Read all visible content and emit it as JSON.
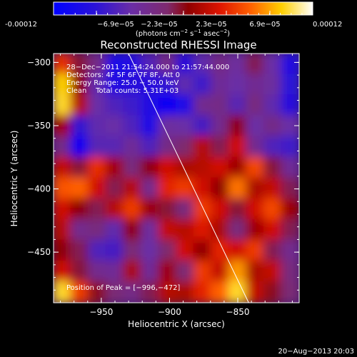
{
  "chart_data": {
    "type": "heatmap",
    "title": "Reconstructed RHESSI Image",
    "xlabel": "Heliocentric X (arcsec)",
    "ylabel": "Heliocentric Y (arcsec)",
    "xlim": [
      -985,
      -805
    ],
    "ylim": [
      -490,
      -293
    ],
    "x_ticks": [
      -950,
      -900,
      -850
    ],
    "y_ticks": [
      -300,
      -350,
      -400,
      -450
    ],
    "x_tick_labels": [
      "−950",
      "−900",
      "−850"
    ],
    "y_tick_labels": [
      "−300",
      "−350",
      "−400",
      "−450"
    ],
    "colorbar": {
      "min": -0.00012,
      "max": 0.00012,
      "tick_labels": [
        "-0.00012",
        "−6.9e−05",
        "−2.3e−05",
        "2.3e−05",
        "6.9e−05",
        "0.00012"
      ],
      "unit_label_parts": [
        "(photons cm",
        "−2",
        " s",
        "−1",
        " asec",
        "−2",
        ")"
      ]
    },
    "annotations": [
      "28−Dec−2011 21:54:24.000 to 21:57:44.000",
      "Detectors: 4F 5F 6F 7F 8F, Att 0",
      "Energy Range: 25.0 − 50.0 keV",
      "Clean    Total counts: 5.31E+03"
    ],
    "peak_label": "Position of Peak = [−996,−472]",
    "limb_line": [
      [
        -930,
        -293
      ],
      [
        -842,
        -490
      ]
    ],
    "image_grid": {
      "rows": 12,
      "cols": 14,
      "values": [
        [
          0.68,
          0.48,
          0.38,
          0.1,
          0.12,
          0.25,
          0.38,
          0.15,
          0.28,
          0.38,
          0.32,
          0.46,
          0.3,
          0.12
        ],
        [
          0.88,
          0.52,
          0.28,
          0.12,
          0.15,
          0.14,
          0.18,
          0.28,
          0.2,
          0.34,
          0.3,
          0.35,
          0.32,
          0.16
        ],
        [
          0.9,
          0.58,
          0.3,
          0.24,
          0.2,
          0.12,
          0.04,
          0.1,
          0.36,
          0.38,
          0.26,
          0.4,
          0.28,
          0.14
        ],
        [
          0.55,
          0.18,
          0.28,
          0.3,
          0.24,
          0.1,
          0.32,
          0.3,
          0.22,
          0.36,
          0.52,
          0.3,
          0.38,
          0.3
        ],
        [
          0.38,
          0.05,
          0.26,
          0.26,
          0.34,
          0.24,
          0.38,
          0.44,
          0.58,
          0.46,
          0.62,
          0.36,
          0.24,
          0.2
        ],
        [
          0.6,
          0.48,
          0.68,
          0.55,
          0.4,
          0.52,
          0.62,
          0.56,
          0.58,
          0.62,
          0.54,
          0.72,
          0.48,
          0.34
        ],
        [
          0.74,
          0.76,
          0.62,
          0.46,
          0.58,
          0.36,
          0.66,
          0.7,
          0.62,
          0.52,
          0.78,
          0.56,
          0.6,
          0.46
        ],
        [
          0.62,
          0.52,
          0.46,
          0.58,
          0.7,
          0.54,
          0.48,
          0.4,
          0.7,
          0.62,
          0.48,
          0.62,
          0.72,
          0.54
        ],
        [
          0.58,
          0.36,
          0.4,
          0.28,
          0.52,
          0.32,
          0.6,
          0.58,
          0.64,
          0.56,
          0.4,
          0.54,
          0.62,
          0.46
        ],
        [
          0.52,
          0.46,
          0.24,
          0.22,
          0.42,
          0.3,
          0.44,
          0.62,
          0.52,
          0.66,
          0.62,
          0.7,
          0.46,
          0.36
        ],
        [
          0.62,
          0.48,
          0.36,
          0.34,
          0.56,
          0.34,
          0.54,
          0.42,
          0.7,
          0.6,
          0.82,
          0.56,
          0.6,
          0.4
        ],
        [
          0.9,
          0.7,
          0.5,
          0.42,
          0.38,
          0.46,
          0.58,
          0.56,
          0.66,
          0.76,
          0.9,
          0.6,
          0.5,
          0.42
        ]
      ]
    }
  },
  "footer": {
    "timestamp": "20−Aug−2013 20:03"
  }
}
